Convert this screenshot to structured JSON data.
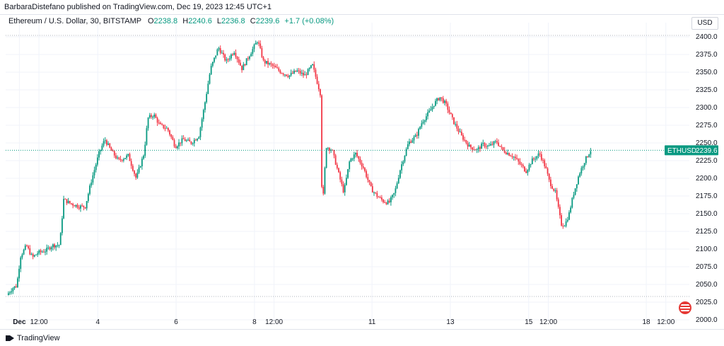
{
  "header": {
    "published": "BarbaraDistefano published on TradingView.com, Dec 19, 2023 12:45 UTC+1"
  },
  "legend": {
    "symbol": "Ethereum / U.S. Dollar, 30, BITSTAMP",
    "o_label": "O",
    "o_val": "2238.8",
    "h_label": "H",
    "h_val": "2240.6",
    "l_label": "L",
    "l_val": "2236.8",
    "c_label": "C",
    "c_val": "2239.6",
    "change": "+1.7 (+0.08%)"
  },
  "currency": "USD",
  "footer": {
    "brand": "TradingView"
  },
  "colors": {
    "up": "#089981",
    "down": "#f23645",
    "grid": "#f0f3fa",
    "axis_text": "#131722",
    "last_price_bg": "#089981"
  },
  "chart_data": {
    "type": "candlestick",
    "symbol": "ETHUSD",
    "last_price": 2239.6,
    "ylim": [
      2000,
      2410
    ],
    "yticks": [
      2000,
      2025,
      2050,
      2075,
      2100,
      2125,
      2150,
      2175,
      2200,
      2225,
      2250,
      2275,
      2300,
      2325,
      2350,
      2375,
      2400
    ],
    "xticks": [
      {
        "label": "Dec",
        "t": 0.0
      },
      {
        "label": "12:00",
        "t": 0.5
      },
      {
        "label": "4",
        "t": 2.0
      },
      {
        "label": "6",
        "t": 4.0
      },
      {
        "label": "8",
        "t": 6.0
      },
      {
        "label": "12:00",
        "t": 6.5
      },
      {
        "label": "11",
        "t": 9.0
      },
      {
        "label": "13",
        "t": 11.0
      },
      {
        "label": "15",
        "t": 13.0
      },
      {
        "label": "12:00",
        "t": 13.5
      },
      {
        "label": "18",
        "t": 16.0
      },
      {
        "label": "12:00",
        "t": 16.5
      }
    ],
    "dotted_levels": [
      2402,
      2033
    ],
    "path_points": [
      [
        -0.3,
        2035
      ],
      [
        -0.15,
        2045
      ],
      [
        -0.05,
        2048
      ],
      [
        0.05,
        2090
      ],
      [
        0.2,
        2105
      ],
      [
        0.35,
        2088
      ],
      [
        0.5,
        2095
      ],
      [
        0.7,
        2098
      ],
      [
        0.85,
        2105
      ],
      [
        1.05,
        2106
      ],
      [
        1.15,
        2170
      ],
      [
        1.3,
        2165
      ],
      [
        1.55,
        2160
      ],
      [
        1.7,
        2160
      ],
      [
        1.85,
        2195
      ],
      [
        2.05,
        2235
      ],
      [
        2.2,
        2255
      ],
      [
        2.35,
        2240
      ],
      [
        2.55,
        2225
      ],
      [
        2.8,
        2232
      ],
      [
        3.0,
        2200
      ],
      [
        3.2,
        2235
      ],
      [
        3.3,
        2285
      ],
      [
        3.45,
        2290
      ],
      [
        3.6,
        2275
      ],
      [
        3.8,
        2270
      ],
      [
        4.0,
        2245
      ],
      [
        4.2,
        2255
      ],
      [
        4.4,
        2250
      ],
      [
        4.6,
        2260
      ],
      [
        4.75,
        2305
      ],
      [
        4.9,
        2355
      ],
      [
        5.1,
        2385
      ],
      [
        5.3,
        2365
      ],
      [
        5.5,
        2380
      ],
      [
        5.7,
        2355
      ],
      [
        5.9,
        2375
      ],
      [
        6.1,
        2395
      ],
      [
        6.25,
        2365
      ],
      [
        6.45,
        2360
      ],
      [
        6.7,
        2350
      ],
      [
        6.9,
        2345
      ],
      [
        7.1,
        2352
      ],
      [
        7.3,
        2345
      ],
      [
        7.5,
        2360
      ],
      [
        7.6,
        2340
      ],
      [
        7.7,
        2320
      ],
      [
        7.75,
        2150
      ],
      [
        7.85,
        2245
      ],
      [
        8.0,
        2240
      ],
      [
        8.15,
        2210
      ],
      [
        8.3,
        2180
      ],
      [
        8.45,
        2225
      ],
      [
        8.6,
        2235
      ],
      [
        8.8,
        2215
      ],
      [
        9.0,
        2185
      ],
      [
        9.15,
        2175
      ],
      [
        9.3,
        2168
      ],
      [
        9.45,
        2165
      ],
      [
        9.6,
        2180
      ],
      [
        9.75,
        2215
      ],
      [
        9.95,
        2250
      ],
      [
        10.15,
        2260
      ],
      [
        10.3,
        2280
      ],
      [
        10.5,
        2295
      ],
      [
        10.6,
        2305
      ],
      [
        10.75,
        2315
      ],
      [
        10.9,
        2305
      ],
      [
        11.1,
        2280
      ],
      [
        11.3,
        2260
      ],
      [
        11.5,
        2245
      ],
      [
        11.7,
        2240
      ],
      [
        11.85,
        2248
      ],
      [
        12.0,
        2245
      ],
      [
        12.2,
        2252
      ],
      [
        12.35,
        2240
      ],
      [
        12.5,
        2235
      ],
      [
        12.65,
        2230
      ],
      [
        12.8,
        2220
      ],
      [
        12.95,
        2210
      ],
      [
        13.1,
        2225
      ],
      [
        13.3,
        2235
      ],
      [
        13.45,
        2215
      ],
      [
        13.55,
        2195
      ],
      [
        13.7,
        2180
      ],
      [
        13.85,
        2135
      ],
      [
        13.95,
        2135
      ],
      [
        14.05,
        2150
      ],
      [
        14.15,
        2175
      ],
      [
        14.3,
        2205
      ],
      [
        14.45,
        2225
      ],
      [
        14.6,
        2239.6
      ]
    ]
  }
}
